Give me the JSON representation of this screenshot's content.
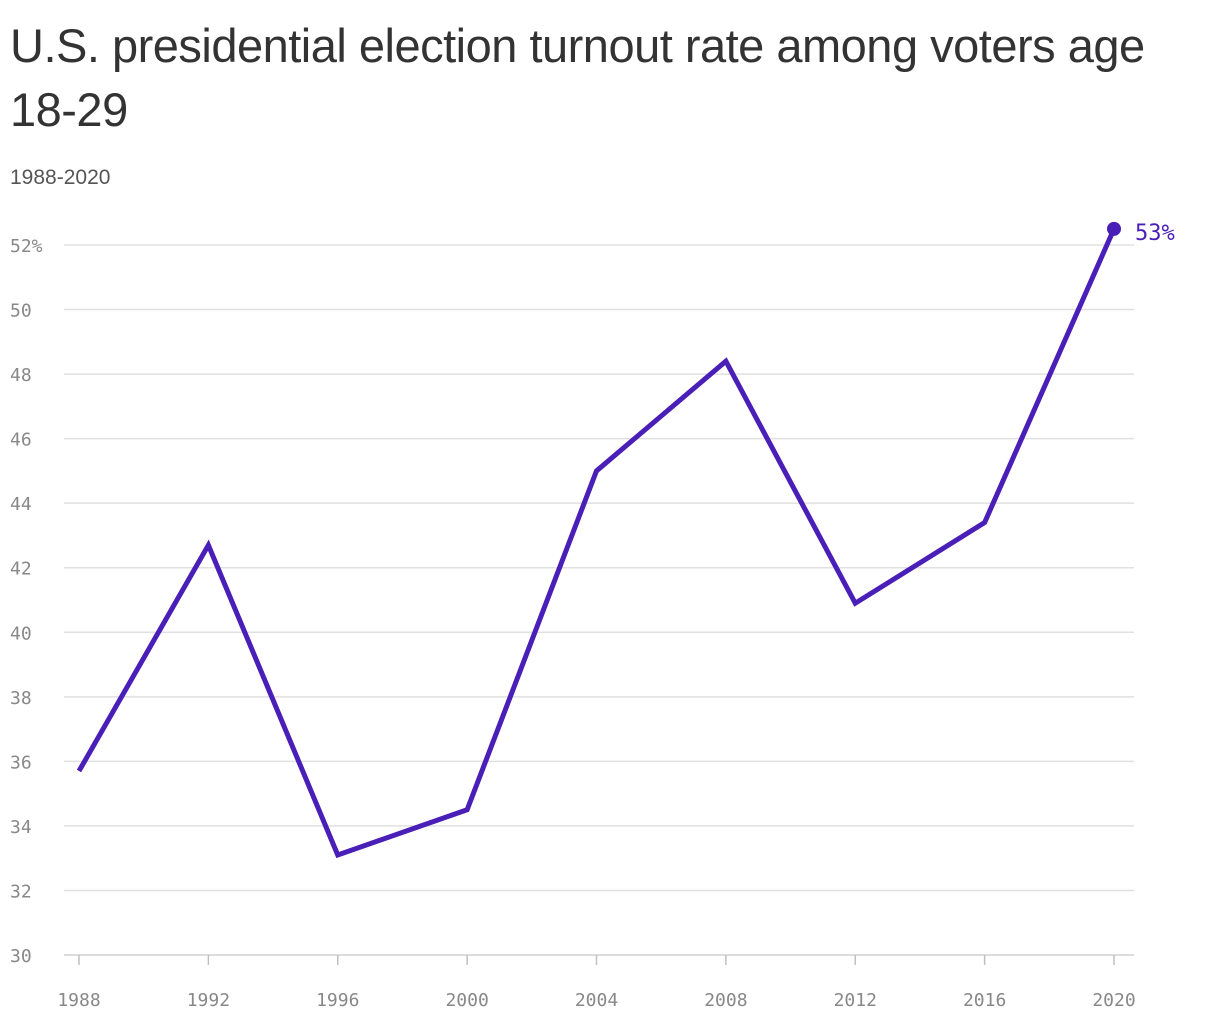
{
  "header": {
    "title": "U.S. presidential election turnout rate among voters age 18-29",
    "subtitle": "1988-2020"
  },
  "chart_data": {
    "type": "line",
    "title": "U.S. presidential election turnout rate among voters age 18-29",
    "subtitle": "1988-2020",
    "xlabel": "",
    "ylabel": "",
    "x": [
      1988,
      1992,
      1996,
      2000,
      2004,
      2008,
      2012,
      2016,
      2020
    ],
    "series": [
      {
        "values": [
          35.7,
          42.7,
          33.1,
          34.5,
          45.0,
          48.4,
          40.9,
          43.4,
          52.5
        ],
        "color": "#4a1fb8"
      }
    ],
    "ylim": [
      30,
      52
    ],
    "yticks": [
      30,
      32,
      34,
      36,
      38,
      40,
      42,
      44,
      46,
      48,
      50,
      52
    ],
    "ytick_labels": [
      "30",
      "32",
      "34",
      "36",
      "38",
      "40",
      "42",
      "44",
      "46",
      "48",
      "50",
      "52%"
    ],
    "xticks": [
      1988,
      1992,
      1996,
      2000,
      2004,
      2008,
      2012,
      2016,
      2020
    ],
    "xtick_labels": [
      "1988",
      "1992",
      "1996",
      "2000",
      "2004",
      "2008",
      "2012",
      "2016",
      "2020"
    ],
    "end_label": "53%",
    "grid": true
  }
}
